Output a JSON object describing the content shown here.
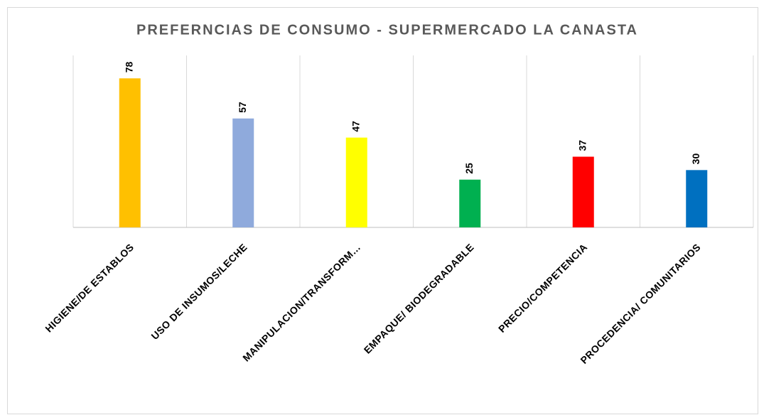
{
  "chart_data": {
    "type": "bar",
    "title": "PREFERNCIAS  DE  CONSUMO  -  SUPERMERCADO  LA  CANASTA",
    "categories": [
      "HIGIENE/DE ESTABLOS",
      "USO DE INSUMOS/LECHE",
      "MANIPULACION/TRANSFORM…",
      "EMPAQUE/ BIODEGRADABLE",
      "PRECIO/COMPETENCIA",
      "PROCEDENCIA/ COMUNITARIOS"
    ],
    "values": [
      78,
      57,
      47,
      25,
      37,
      30
    ],
    "colors": [
      "#ffc000",
      "#8faadc",
      "#ffff00",
      "#00b050",
      "#ff0000",
      "#0070c0"
    ],
    "ylim": [
      0,
      90
    ],
    "grid": true
  }
}
